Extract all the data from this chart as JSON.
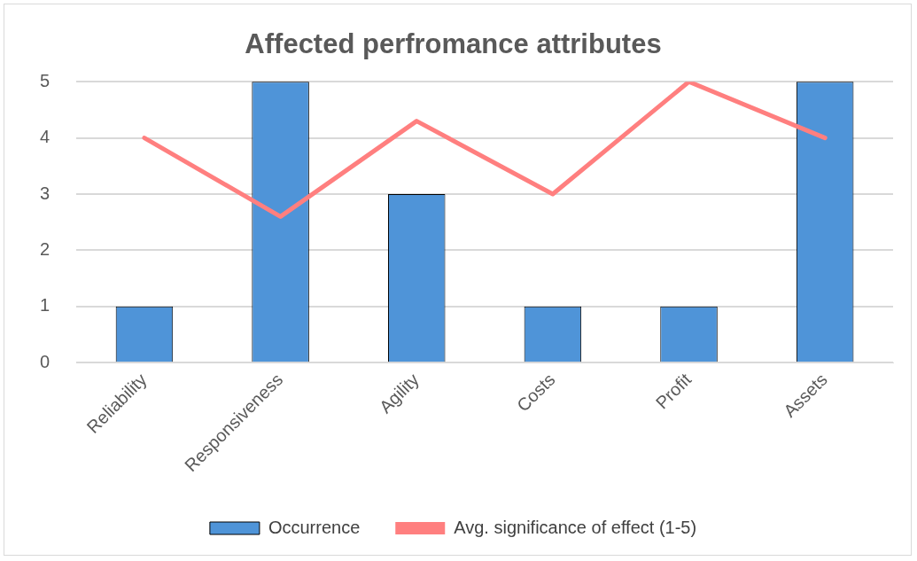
{
  "chart_data": {
    "type": "bar",
    "title": "Affected perfromance attributes",
    "categories": [
      "Reliability",
      "Responsiveness",
      "Agility",
      "Costs",
      "Profit",
      "Assets"
    ],
    "series": [
      {
        "name": "Occurrence",
        "color": "#4f94d8",
        "values": [
          1,
          5,
          3,
          1,
          1,
          5
        ]
      },
      {
        "name": "Avg. significance of effect (1-5)",
        "type": "line",
        "color": "#ff7f7f",
        "values": [
          4,
          2.6,
          4.3,
          3,
          5,
          4
        ]
      }
    ],
    "ylim": [
      0,
      5
    ],
    "yticks": [
      0,
      1,
      2,
      3,
      4,
      5
    ],
    "grid": "y",
    "legend": "bottom",
    "marker": "none"
  }
}
